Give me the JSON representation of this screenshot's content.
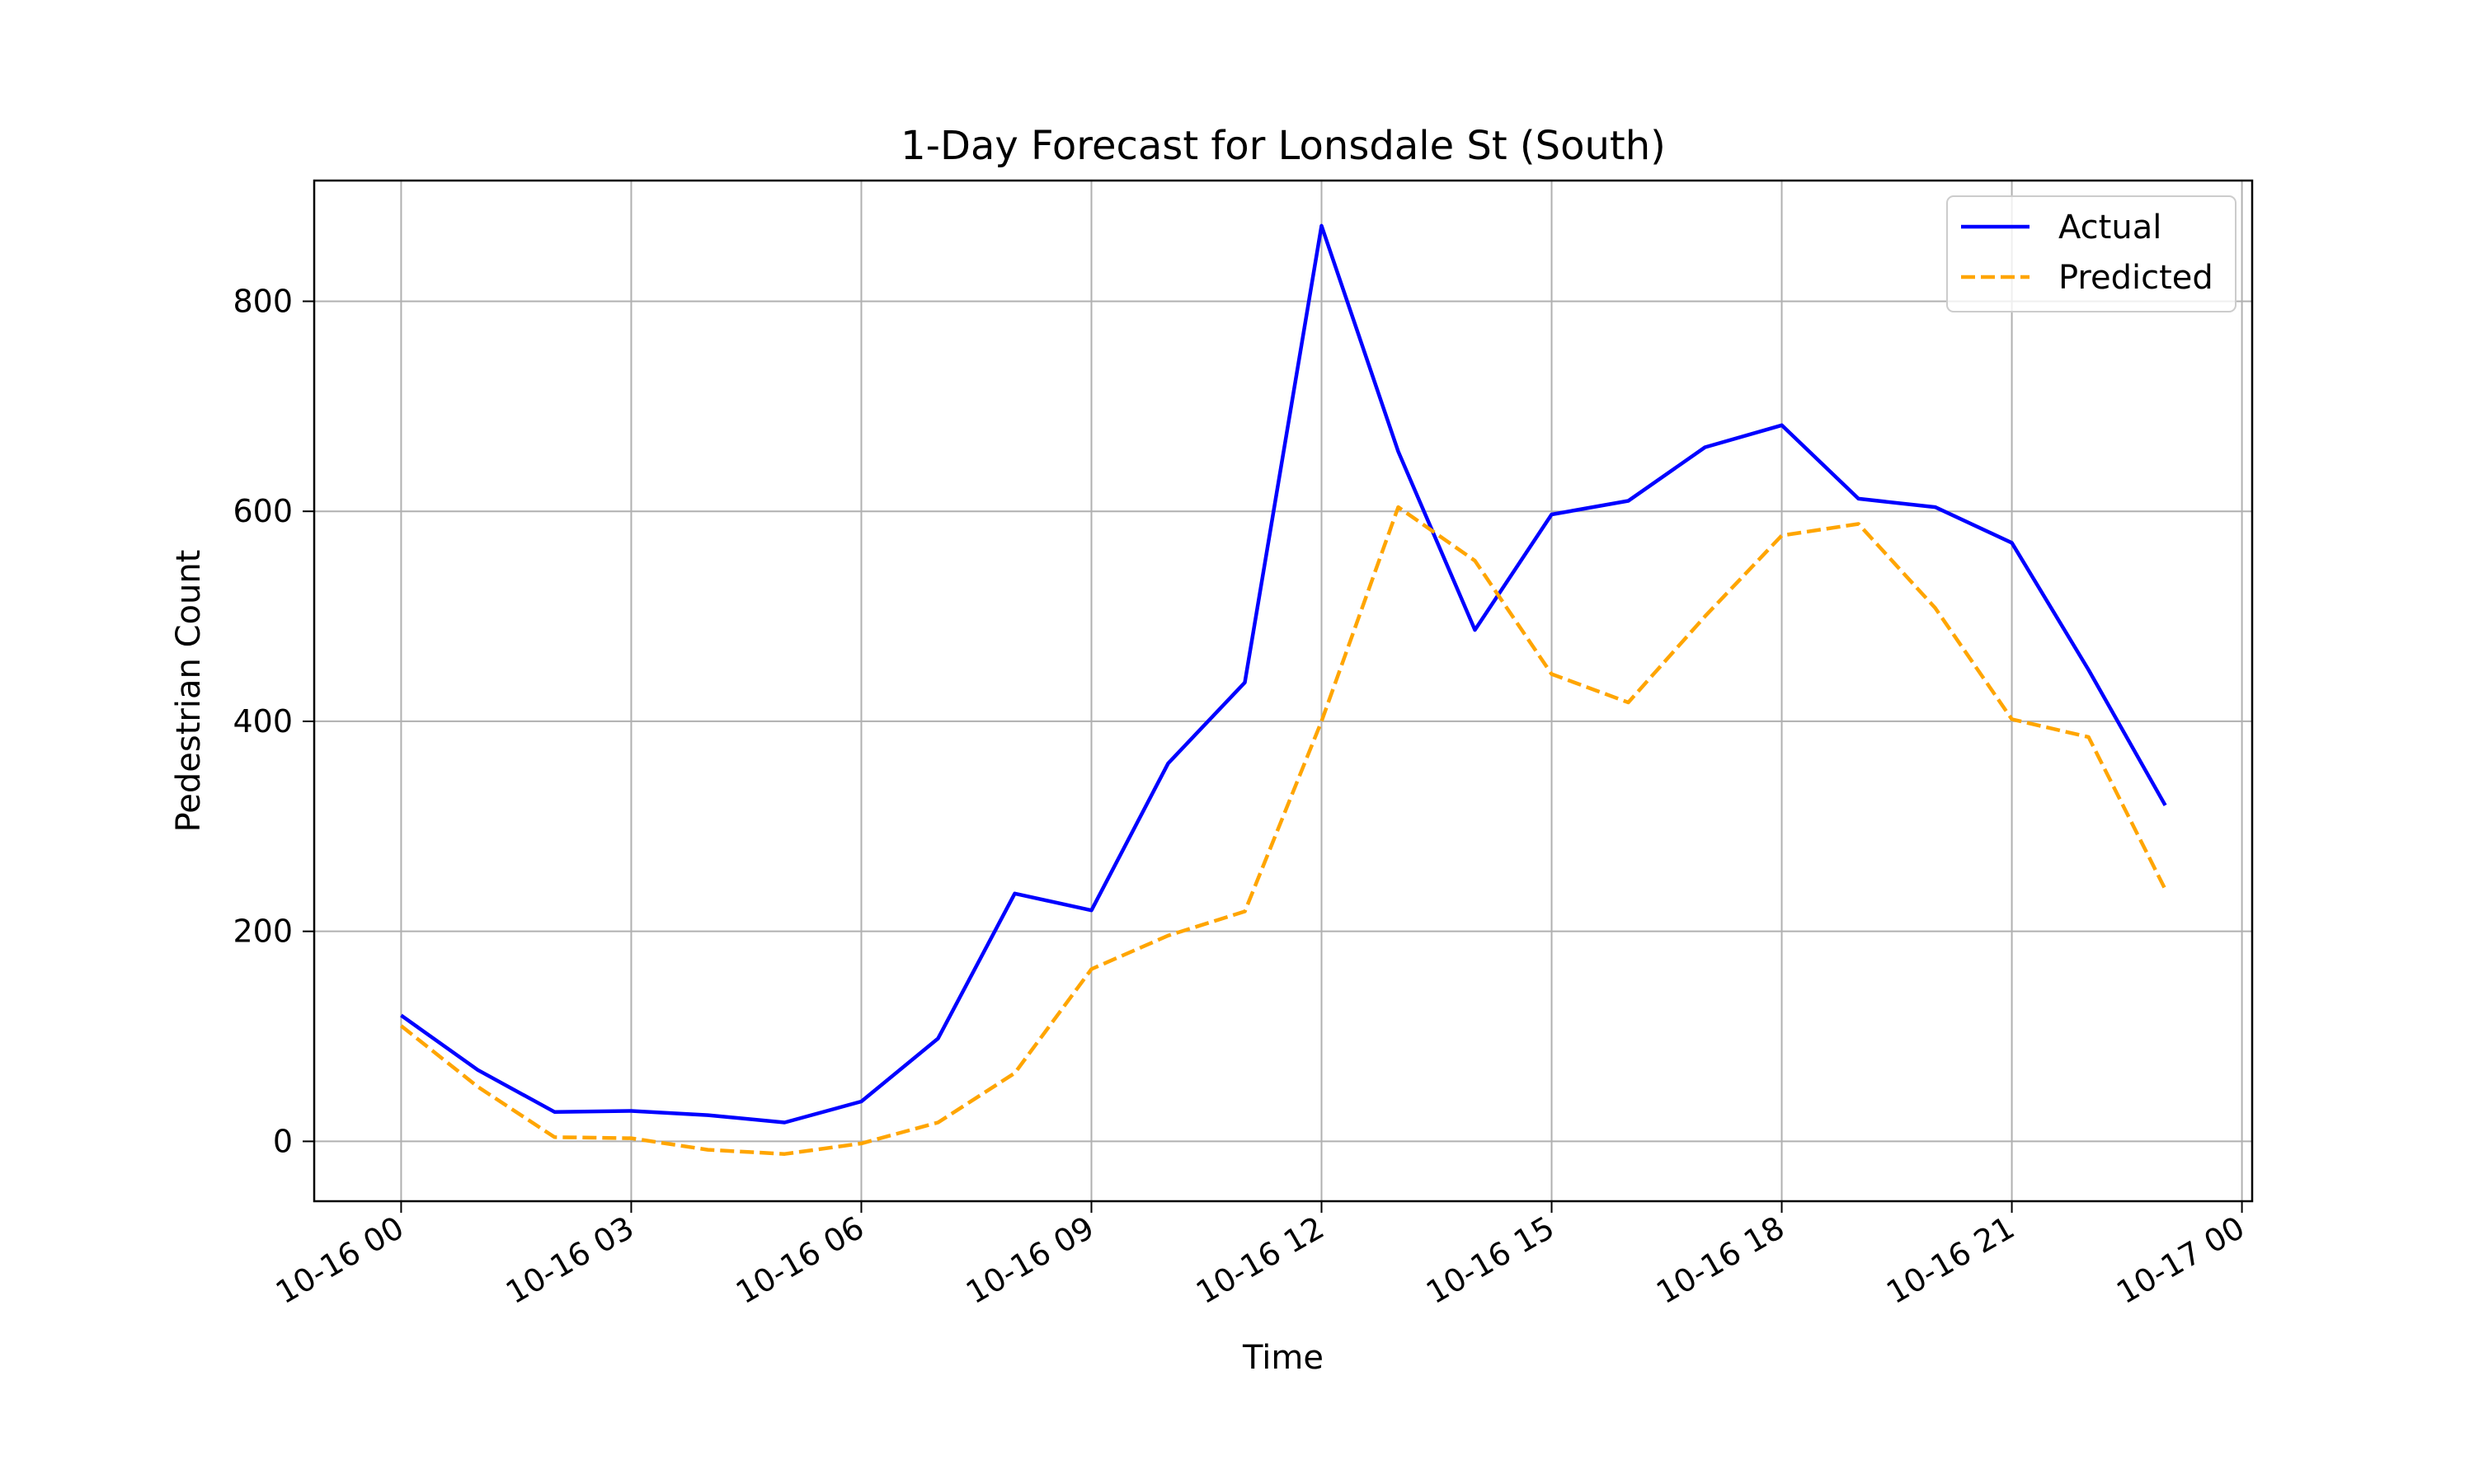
{
  "chart_data": {
    "type": "line",
    "title": "1-Day Forecast for Lonsdale St (South)",
    "xlabel": "Time",
    "ylabel": "Pedestrian Count",
    "x": [
      "2024-10-16 00:00",
      "2024-10-16 01:00",
      "2024-10-16 02:00",
      "2024-10-16 03:00",
      "2024-10-16 04:00",
      "2024-10-16 05:00",
      "2024-10-16 06:00",
      "2024-10-16 07:00",
      "2024-10-16 08:00",
      "2024-10-16 09:00",
      "2024-10-16 10:00",
      "2024-10-16 11:00",
      "2024-10-16 12:00",
      "2024-10-16 13:00",
      "2024-10-16 14:00",
      "2024-10-16 15:00",
      "2024-10-16 16:00",
      "2024-10-16 17:00",
      "2024-10-16 18:00",
      "2024-10-16 19:00",
      "2024-10-16 20:00",
      "2024-10-16 21:00",
      "2024-10-16 22:00",
      "2024-10-16 23:00"
    ],
    "xlim": [
      "2024-10-15 22:52",
      "2024-10-17 00:08"
    ],
    "ylim": [
      -57,
      915
    ],
    "xticks": [
      "10-16 00",
      "10-16 03",
      "10-16 06",
      "10-16 09",
      "10-16 12",
      "10-16 15",
      "10-16 18",
      "10-16 21",
      "10-17 00"
    ],
    "yticks": [
      0,
      200,
      400,
      600,
      800
    ],
    "grid": true,
    "legend": "top-right",
    "series": [
      {
        "name": "Actual",
        "color": "#0000ff",
        "style": "solid",
        "values": [
          120,
          68,
          28,
          29,
          25,
          18,
          38,
          98,
          236,
          220,
          360,
          437,
          872,
          657,
          487,
          597,
          610,
          661,
          682,
          612,
          604,
          570,
          449,
          320
        ]
      },
      {
        "name": "Predicted",
        "color": "#ffa500",
        "style": "dashed",
        "values": [
          110,
          52,
          4,
          3,
          -8,
          -12,
          -2,
          18,
          65,
          164,
          196,
          219,
          400,
          604,
          553,
          445,
          418,
          500,
          577,
          588,
          508,
          402,
          385,
          240
        ]
      }
    ]
  }
}
